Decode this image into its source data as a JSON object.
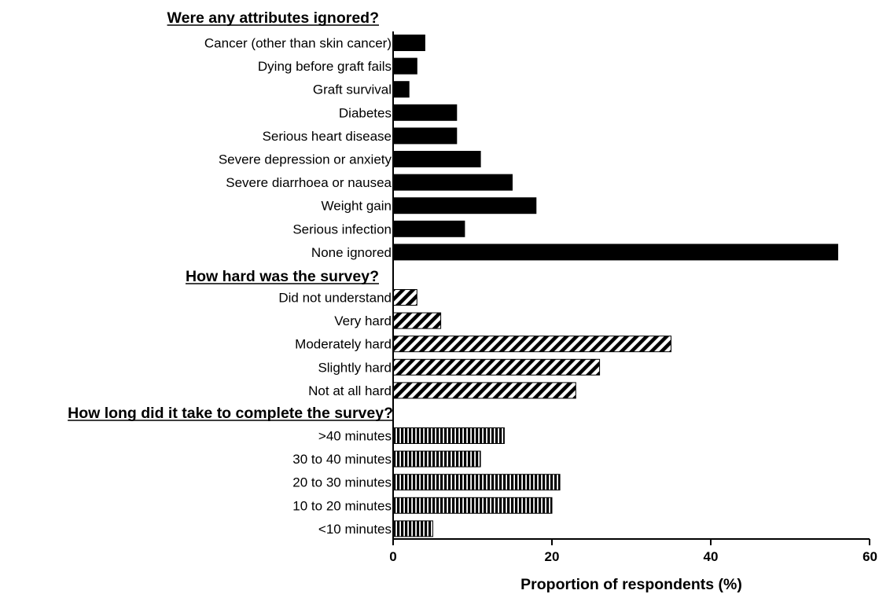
{
  "chart_data": {
    "type": "bar",
    "orientation": "horizontal",
    "xlabel": "Proportion of respondents (%)",
    "xlim": [
      0,
      60
    ],
    "xticks": [
      "0",
      "20",
      "40",
      "60"
    ],
    "grid": false,
    "groups": [
      {
        "heading": "Were any attributes ignored?",
        "fill": "solid",
        "categories": [
          "Cancer (other than skin cancer)",
          "Dying before graft fails",
          "Graft survival",
          "Diabetes",
          "Serious heart disease",
          "Severe depression or anxiety",
          "Severe diarrhoea or nausea",
          "Weight gain",
          "Serious infection",
          "None ignored"
        ],
        "values": [
          4,
          3,
          2,
          8,
          8,
          11,
          15,
          18,
          9,
          56
        ]
      },
      {
        "heading": "How hard was the survey?",
        "fill": "diagonal-hatch",
        "categories": [
          "Did not understand",
          "Very hard",
          "Moderately hard",
          "Slightly hard",
          "Not at all hard"
        ],
        "values": [
          3,
          6,
          35,
          26,
          23
        ]
      },
      {
        "heading": "How long did it take to complete the survey?",
        "fill": "vertical-hatch",
        "categories": [
          ">40 minutes",
          "30 to 40 minutes",
          "20 to 30 minutes",
          "10 to 20 minutes",
          "<10 minutes"
        ],
        "values": [
          14,
          11,
          21,
          20,
          5
        ]
      }
    ],
    "colors": {
      "bar": "#000000",
      "background": "#ffffff"
    }
  }
}
